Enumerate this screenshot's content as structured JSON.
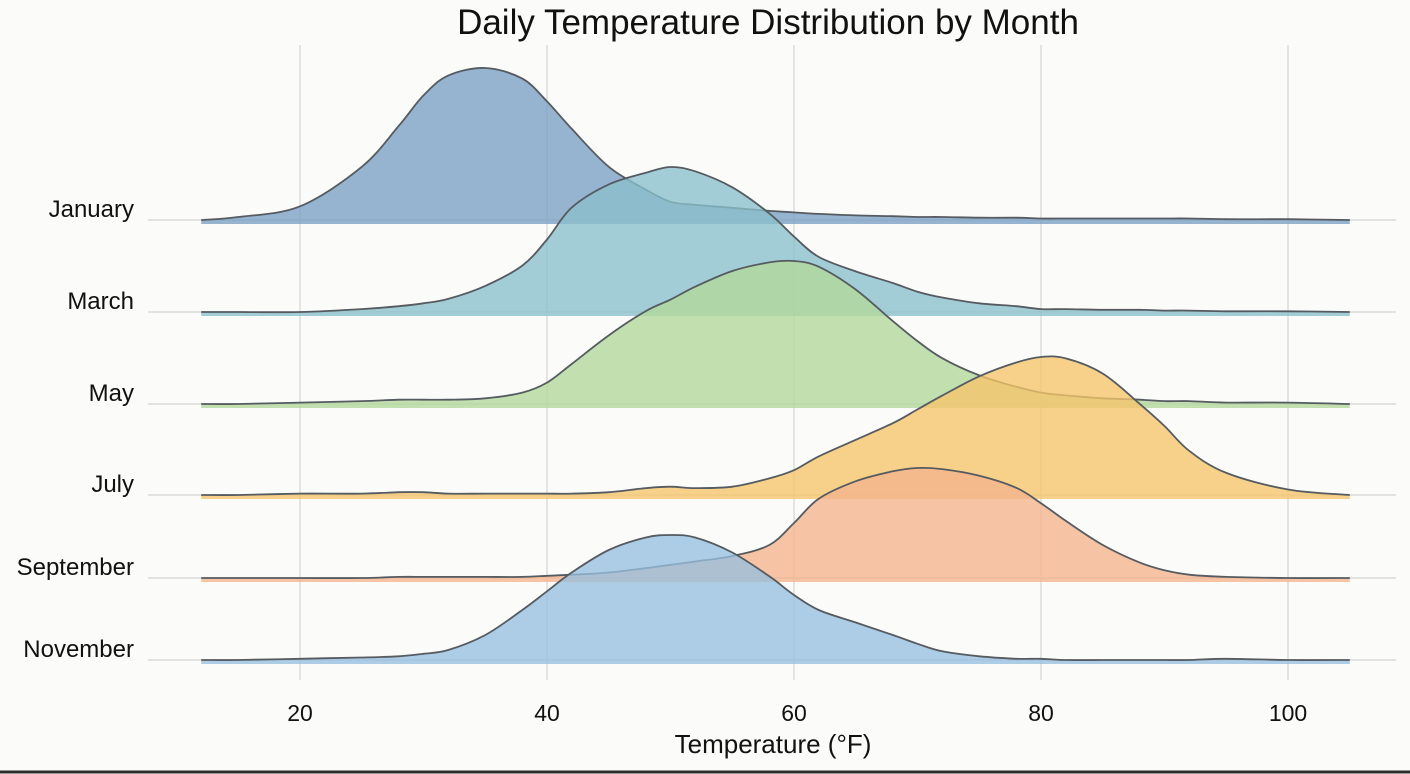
{
  "chart_data": {
    "type": "area",
    "subtype": "ridgeline",
    "title": "Daily Temperature Distribution by Month",
    "xlabel": "Temperature (°F)",
    "ylabel": "",
    "xlim": [
      12,
      105
    ],
    "x_ticks": [
      20,
      40,
      60,
      80,
      100
    ],
    "grid": true,
    "legend": "none",
    "x": [
      12,
      15,
      20,
      25,
      28,
      30,
      32,
      35,
      38,
      40,
      42,
      45,
      48,
      50,
      52,
      55,
      58,
      60,
      62,
      65,
      68,
      70,
      72,
      75,
      78,
      80,
      82,
      85,
      88,
      90,
      92,
      95,
      100,
      105
    ],
    "series": [
      {
        "name": "January",
        "color": "#7a9fc4",
        "values": [
          0.0,
          0.02,
          0.09,
          0.35,
          0.62,
          0.82,
          0.95,
          1.0,
          0.93,
          0.78,
          0.6,
          0.35,
          0.2,
          0.12,
          0.1,
          0.08,
          0.06,
          0.05,
          0.04,
          0.03,
          0.025,
          0.02,
          0.02,
          0.015,
          0.015,
          0.01,
          0.01,
          0.01,
          0.01,
          0.01,
          0.01,
          0.005,
          0.005,
          0.0
        ]
      },
      {
        "name": "March",
        "color": "#8bc0cc",
        "values": [
          0.0,
          0.0,
          0.0,
          0.02,
          0.04,
          0.06,
          0.09,
          0.18,
          0.32,
          0.5,
          0.72,
          0.88,
          0.96,
          1.0,
          0.97,
          0.86,
          0.68,
          0.52,
          0.38,
          0.28,
          0.2,
          0.14,
          0.1,
          0.06,
          0.04,
          0.02,
          0.02,
          0.015,
          0.015,
          0.01,
          0.01,
          0.005,
          0.005,
          0.0
        ]
      },
      {
        "name": "May",
        "color": "#b2d99a",
        "values": [
          0.0,
          0.0,
          0.01,
          0.02,
          0.03,
          0.03,
          0.03,
          0.04,
          0.08,
          0.15,
          0.28,
          0.48,
          0.65,
          0.73,
          0.82,
          0.93,
          0.99,
          1.0,
          0.96,
          0.8,
          0.58,
          0.44,
          0.32,
          0.2,
          0.12,
          0.08,
          0.06,
          0.04,
          0.03,
          0.02,
          0.02,
          0.01,
          0.01,
          0.0
        ]
      },
      {
        "name": "July",
        "color": "#f6c56a",
        "values": [
          0.0,
          0.0,
          0.01,
          0.01,
          0.02,
          0.02,
          0.01,
          0.01,
          0.01,
          0.01,
          0.01,
          0.02,
          0.05,
          0.06,
          0.05,
          0.06,
          0.12,
          0.18,
          0.28,
          0.4,
          0.52,
          0.62,
          0.72,
          0.86,
          0.96,
          1.0,
          0.99,
          0.88,
          0.66,
          0.5,
          0.32,
          0.16,
          0.04,
          0.0
        ]
      },
      {
        "name": "September",
        "color": "#f5b48c",
        "values": [
          0.0,
          0.0,
          0.0,
          0.0,
          0.01,
          0.01,
          0.01,
          0.01,
          0.01,
          0.02,
          0.03,
          0.05,
          0.09,
          0.12,
          0.15,
          0.2,
          0.3,
          0.5,
          0.72,
          0.88,
          0.97,
          1.0,
          0.99,
          0.93,
          0.82,
          0.68,
          0.52,
          0.3,
          0.14,
          0.07,
          0.03,
          0.01,
          0.0,
          0.0
        ]
      },
      {
        "name": "November",
        "color": "#97bfdf",
        "values": [
          0.0,
          0.0,
          0.01,
          0.02,
          0.03,
          0.05,
          0.08,
          0.2,
          0.4,
          0.55,
          0.7,
          0.88,
          0.98,
          1.0,
          0.98,
          0.86,
          0.67,
          0.52,
          0.4,
          0.3,
          0.2,
          0.13,
          0.07,
          0.03,
          0.01,
          0.01,
          0.0,
          0.0,
          0.0,
          0.0,
          0.0,
          0.01,
          0.0,
          0.0
        ]
      }
    ]
  }
}
